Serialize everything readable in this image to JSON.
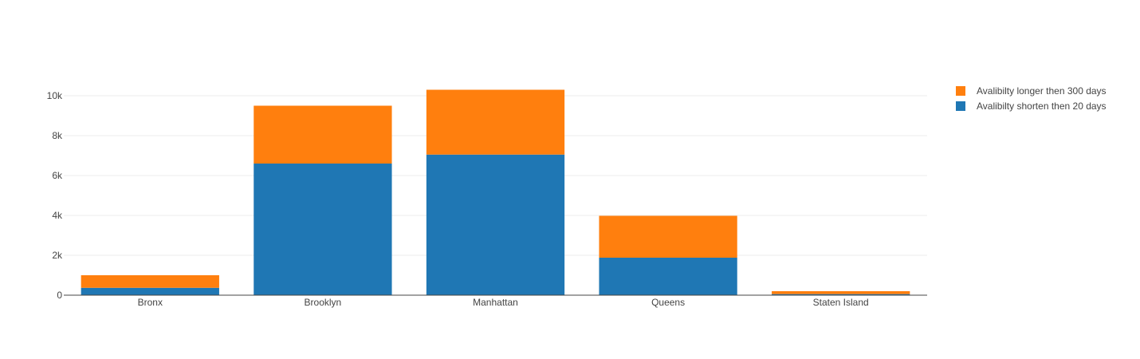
{
  "chart_data": {
    "type": "bar",
    "stacked": true,
    "categories": [
      "Bronx",
      "Brooklyn",
      "Manhattan",
      "Queens",
      "Staten Island"
    ],
    "series": [
      {
        "name": "Avalibilty shorten then 20 days",
        "color": "#1f77b4",
        "values": [
          370,
          6600,
          7050,
          1880,
          55
        ]
      },
      {
        "name": "Avalibilty longer then 300 days",
        "color": "#ff7f0e",
        "values": [
          630,
          2900,
          3250,
          2100,
          145
        ]
      }
    ],
    "ylim": [
      0,
      10800
    ],
    "yticks": [
      0,
      2000,
      4000,
      6000,
      8000,
      10000
    ],
    "ytick_labels": [
      "0",
      "2k",
      "4k",
      "6k",
      "8k",
      "10k"
    ],
    "grid": true,
    "legend_position": "top-right"
  }
}
